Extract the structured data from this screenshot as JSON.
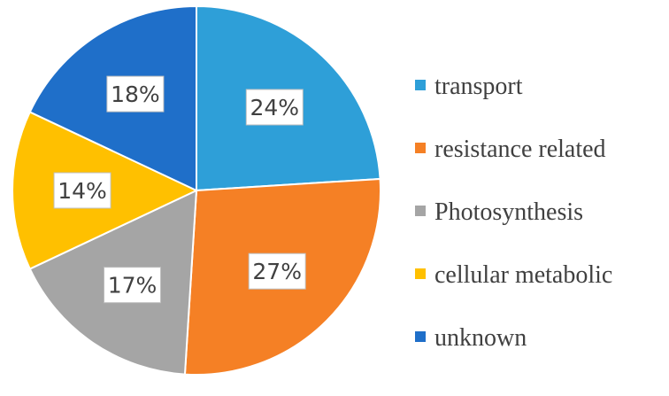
{
  "chart_data": {
    "type": "pie",
    "categories": [
      "transport",
      "resistance related",
      "Photosynthesis",
      "cellular metabolic",
      "unknown"
    ],
    "values": [
      24,
      27,
      17,
      14,
      18
    ],
    "data_labels": [
      "24%",
      "27%",
      "17%",
      "14%",
      "18%"
    ],
    "colors": [
      "#2E9FD8",
      "#F58025",
      "#A5A5A5",
      "#FFC000",
      "#1F6FC9"
    ],
    "legend": {
      "position": "right",
      "entries": [
        "transport",
        "resistance related",
        "Photosynthesis",
        "cellular metabolic",
        "unknown"
      ]
    }
  }
}
